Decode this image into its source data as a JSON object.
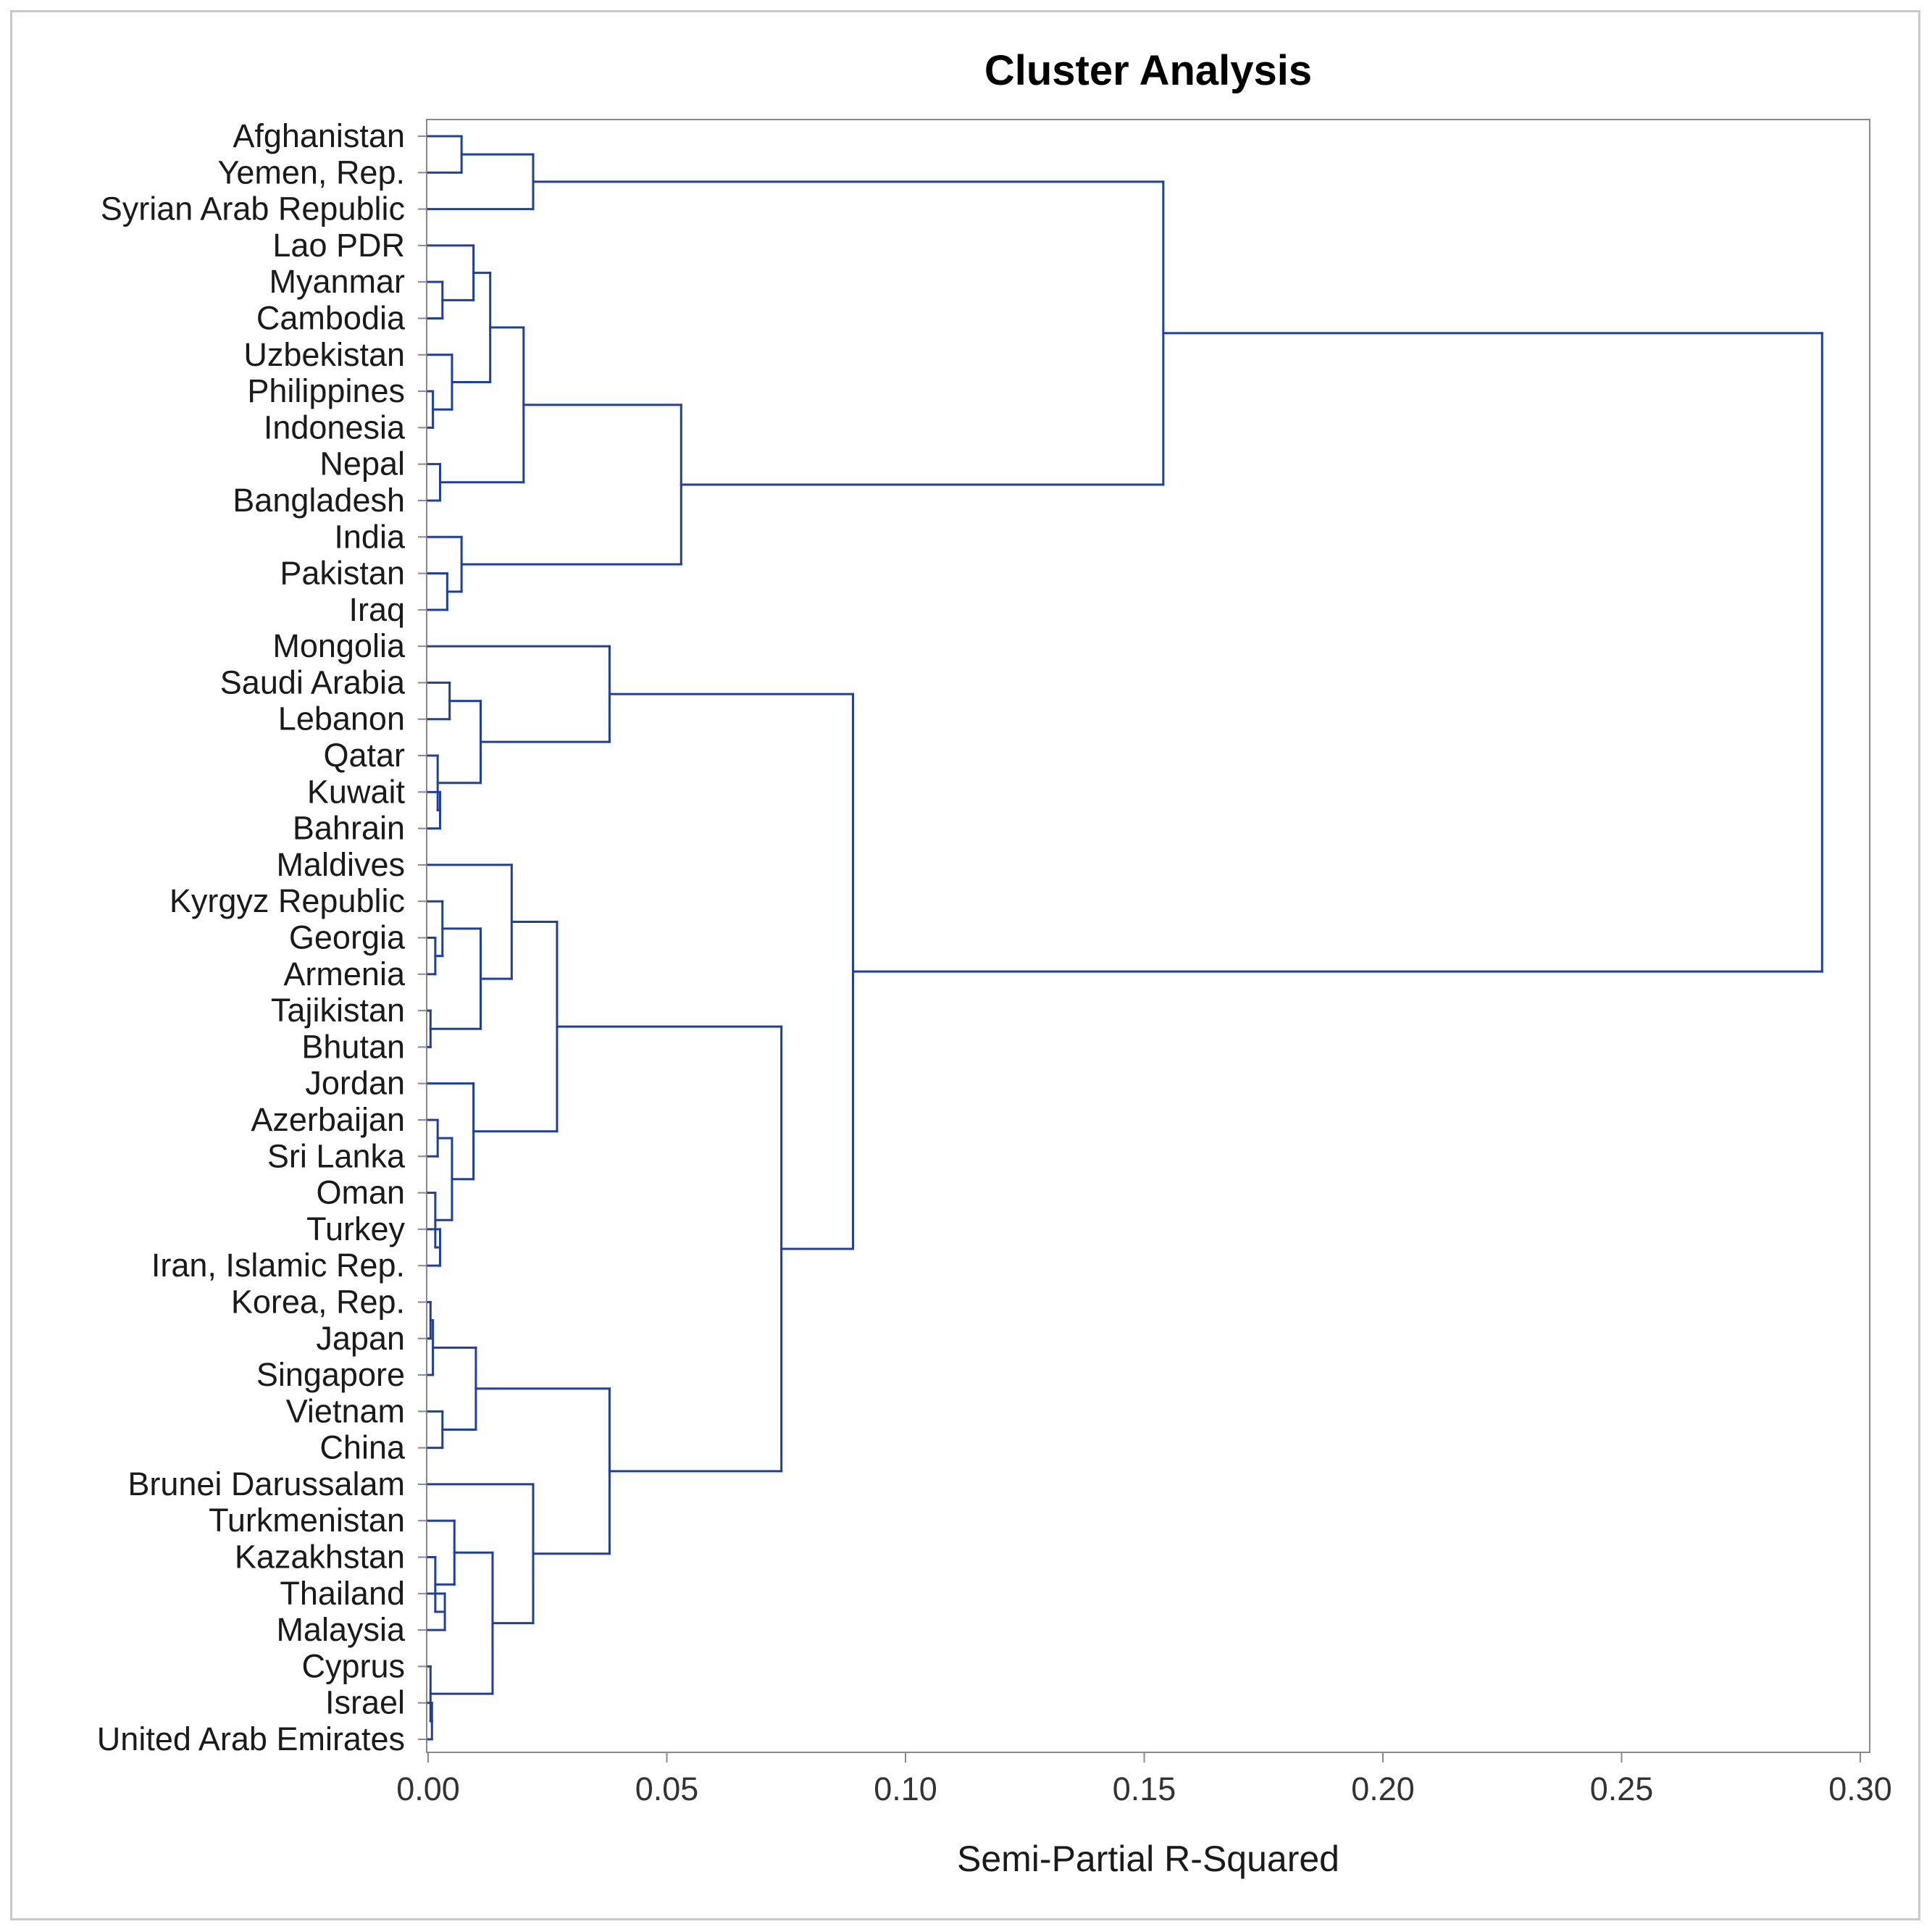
{
  "chart_data": {
    "type": "dendrogram",
    "title": "Cluster Analysis",
    "xlabel": "Semi-Partial R-Squared",
    "ylabel": "",
    "xlim": [
      0.0,
      0.3
    ],
    "xticks": [
      "0.00",
      "0.05",
      "0.10",
      "0.15",
      "0.20",
      "0.25",
      "0.30"
    ],
    "orientation": "horizontal",
    "leaves": [
      "Afghanistan",
      "Yemen, Rep.",
      "Syrian Arab Republic",
      "Lao PDR",
      "Myanmar",
      "Cambodia",
      "Uzbekistan",
      "Philippines",
      "Indonesia",
      "Nepal",
      "Bangladesh",
      "India",
      "Pakistan",
      "Iraq",
      "Mongolia",
      "Saudi Arabia",
      "Lebanon",
      "Qatar",
      "Kuwait",
      "Bahrain",
      "Maldives",
      "Kyrgyz Republic",
      "Georgia",
      "Armenia",
      "Tajikistan",
      "Bhutan",
      "Jordan",
      "Azerbaijan",
      "Sri Lanka",
      "Oman",
      "Turkey",
      "Iran, Islamic Rep.",
      "Korea, Rep.",
      "Japan",
      "Singapore",
      "Vietnam",
      "China",
      "Brunei Darussalam",
      "Turkmenistan",
      "Kazakhstan",
      "Thailand",
      "Malaysia",
      "Cyprus",
      "Israel",
      "United Arab Emirates"
    ],
    "merges": [
      {
        "a": "L0",
        "b": "L1",
        "height": 0.007
      },
      {
        "a": "M0",
        "b": "L2",
        "height": 0.022
      },
      {
        "a": "L4",
        "b": "L5",
        "height": 0.003
      },
      {
        "a": "L3",
        "b": "M2",
        "height": 0.0095
      },
      {
        "a": "L7",
        "b": "L8",
        "height": 0.001
      },
      {
        "a": "L6",
        "b": "M4",
        "height": 0.005
      },
      {
        "a": "M3",
        "b": "M5",
        "height": 0.013
      },
      {
        "a": "L9",
        "b": "L10",
        "height": 0.0025
      },
      {
        "a": "M6",
        "b": "M7",
        "height": 0.02
      },
      {
        "a": "L12",
        "b": "L13",
        "height": 0.004
      },
      {
        "a": "L11",
        "b": "M9",
        "height": 0.007
      },
      {
        "a": "M8",
        "b": "M10",
        "height": 0.053
      },
      {
        "a": "M1",
        "b": "M11",
        "height": 0.154
      },
      {
        "a": "L15",
        "b": "L16",
        "height": 0.0045
      },
      {
        "a": "L18",
        "b": "L19",
        "height": 0.0025
      },
      {
        "a": "L17",
        "b": "M14",
        "height": 0.002
      },
      {
        "a": "M13",
        "b": "M15",
        "height": 0.011
      },
      {
        "a": "L14",
        "b": "M16",
        "height": 0.038
      },
      {
        "a": "L22",
        "b": "L23",
        "height": 0.0015
      },
      {
        "a": "L21",
        "b": "M18",
        "height": 0.003
      },
      {
        "a": "L24",
        "b": "L25",
        "height": 0.0005
      },
      {
        "a": "M19",
        "b": "M20",
        "height": 0.011
      },
      {
        "a": "L20",
        "b": "M21",
        "height": 0.0175
      },
      {
        "a": "L27",
        "b": "L28",
        "height": 0.002
      },
      {
        "a": "L30",
        "b": "L31",
        "height": 0.0025
      },
      {
        "a": "L29",
        "b": "M24",
        "height": 0.0015
      },
      {
        "a": "M23",
        "b": "M25",
        "height": 0.005
      },
      {
        "a": "L26",
        "b": "M26",
        "height": 0.0095
      },
      {
        "a": "M22",
        "b": "M27",
        "height": 0.027
      },
      {
        "a": "L32",
        "b": "L33",
        "height": 0.0005
      },
      {
        "a": "M29",
        "b": "L34",
        "height": 0.001
      },
      {
        "a": "L35",
        "b": "L36",
        "height": 0.003
      },
      {
        "a": "M30",
        "b": "M31",
        "height": 0.01
      },
      {
        "a": "L40",
        "b": "L41",
        "height": 0.0035
      },
      {
        "a": "L39",
        "b": "M33",
        "height": 0.0015
      },
      {
        "a": "L38",
        "b": "M34",
        "height": 0.0055
      },
      {
        "a": "L43",
        "b": "L44",
        "height": 0.0008
      },
      {
        "a": "L42",
        "b": "M36",
        "height": 0.0005
      },
      {
        "a": "M35",
        "b": "M37",
        "height": 0.0135
      },
      {
        "a": "L37",
        "b": "M38",
        "height": 0.022
      },
      {
        "a": "M32",
        "b": "M39",
        "height": 0.038
      },
      {
        "a": "M28",
        "b": "M40",
        "height": 0.074
      },
      {
        "a": "M17",
        "b": "M41",
        "height": 0.089
      },
      {
        "a": "M12",
        "b": "M42",
        "height": 0.292
      }
    ],
    "colors": {
      "branch": "#1f3fa0",
      "axis": "#888888",
      "frame": "#c8c8c8"
    }
  }
}
